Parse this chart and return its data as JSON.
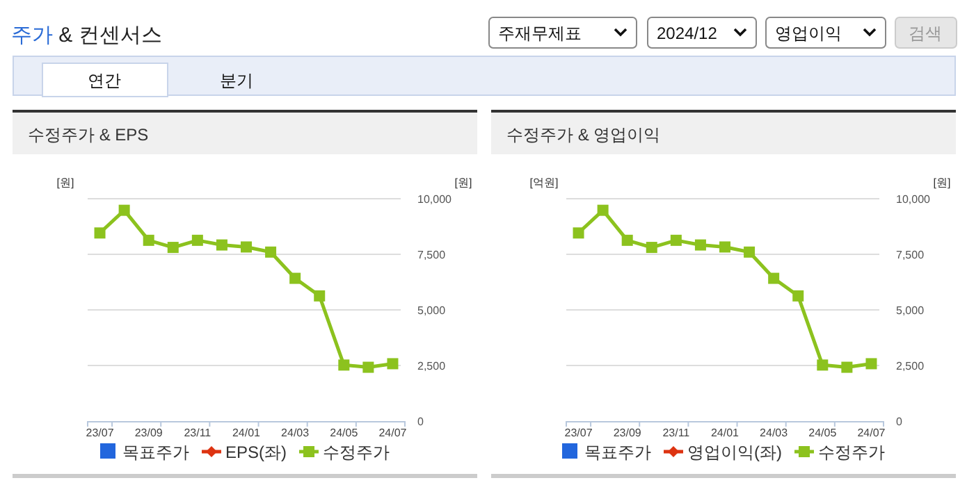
{
  "chart_data": [
    {
      "type": "other",
      "title": "주가 & 컨센서스",
      "annotations": [
        "주재무제표",
        "2024/12",
        "영업이익",
        "검색",
        "연간",
        "분기"
      ]
    },
    {
      "type": "line",
      "title": "수정주가 & EPS",
      "ylabel": "[원]",
      "y2label": "[원]",
      "categories": [
        "23/07",
        null,
        "23/09",
        null,
        "23/11",
        null,
        "24/01",
        null,
        "24/03",
        null,
        "24/05",
        null,
        "24/07"
      ],
      "series": [
        {
          "name": "목표주가",
          "type": "bar",
          "color": "#2266dd",
          "values": [
            null,
            null,
            null,
            null,
            null,
            null,
            null,
            null,
            null,
            null,
            null,
            null,
            null
          ]
        },
        {
          "name": "EPS(좌)",
          "type": "line",
          "marker": "diamond",
          "color": "#dd3311",
          "values": [
            null,
            null,
            null,
            null,
            null,
            null,
            null,
            null,
            null,
            null,
            null,
            null,
            null
          ]
        },
        {
          "name": "수정주가",
          "type": "line",
          "marker": "square",
          "axis": "y2",
          "color": "#8cc21e",
          "values": [
            8460,
            9480,
            8130,
            7810,
            8130,
            7920,
            7830,
            7600,
            6420,
            5630,
            2520,
            2420,
            2580
          ]
        }
      ],
      "y2lim": [
        0,
        10000
      ],
      "y2ticks": [
        0,
        {
          "value": 2500,
          "label": "2,500"
        },
        {
          "value": 5000,
          "label": "5,000"
        },
        {
          "value": 7500,
          "label": "7,500"
        },
        {
          "value": 10000,
          "label": "10,000"
        }
      ],
      "grid": "y",
      "legend": "bottom"
    },
    {
      "type": "line",
      "title": "수정주가 & 영업이익",
      "ylabel": "[억원]",
      "y2label": "[원]",
      "categories": [
        "23/07",
        null,
        "23/09",
        null,
        "23/11",
        null,
        "24/01",
        null,
        "24/03",
        null,
        "24/05",
        null,
        "24/07"
      ],
      "series": [
        {
          "name": "목표주가",
          "type": "bar",
          "color": "#2266dd",
          "values": [
            null,
            null,
            null,
            null,
            null,
            null,
            null,
            null,
            null,
            null,
            null,
            null,
            null
          ]
        },
        {
          "name": "영업이익(좌)",
          "type": "line",
          "marker": "diamond",
          "color": "#dd3311",
          "values": [
            null,
            null,
            null,
            null,
            null,
            null,
            null,
            null,
            null,
            null,
            null,
            null,
            null
          ]
        },
        {
          "name": "수정주가",
          "type": "line",
          "marker": "square",
          "axis": "y2",
          "color": "#8cc21e",
          "values": [
            8460,
            9480,
            8130,
            7810,
            8130,
            7920,
            7830,
            7600,
            6420,
            5630,
            2520,
            2420,
            2580
          ]
        }
      ],
      "y2lim": [
        0,
        10000
      ],
      "y2ticks": [
        0,
        {
          "value": 2500,
          "label": "2,500"
        },
        {
          "value": 5000,
          "label": "5,000"
        },
        {
          "value": 7500,
          "label": "7,500"
        },
        {
          "value": 10000,
          "label": "10,000"
        }
      ],
      "grid": "y",
      "legend": "bottom"
    }
  ]
}
